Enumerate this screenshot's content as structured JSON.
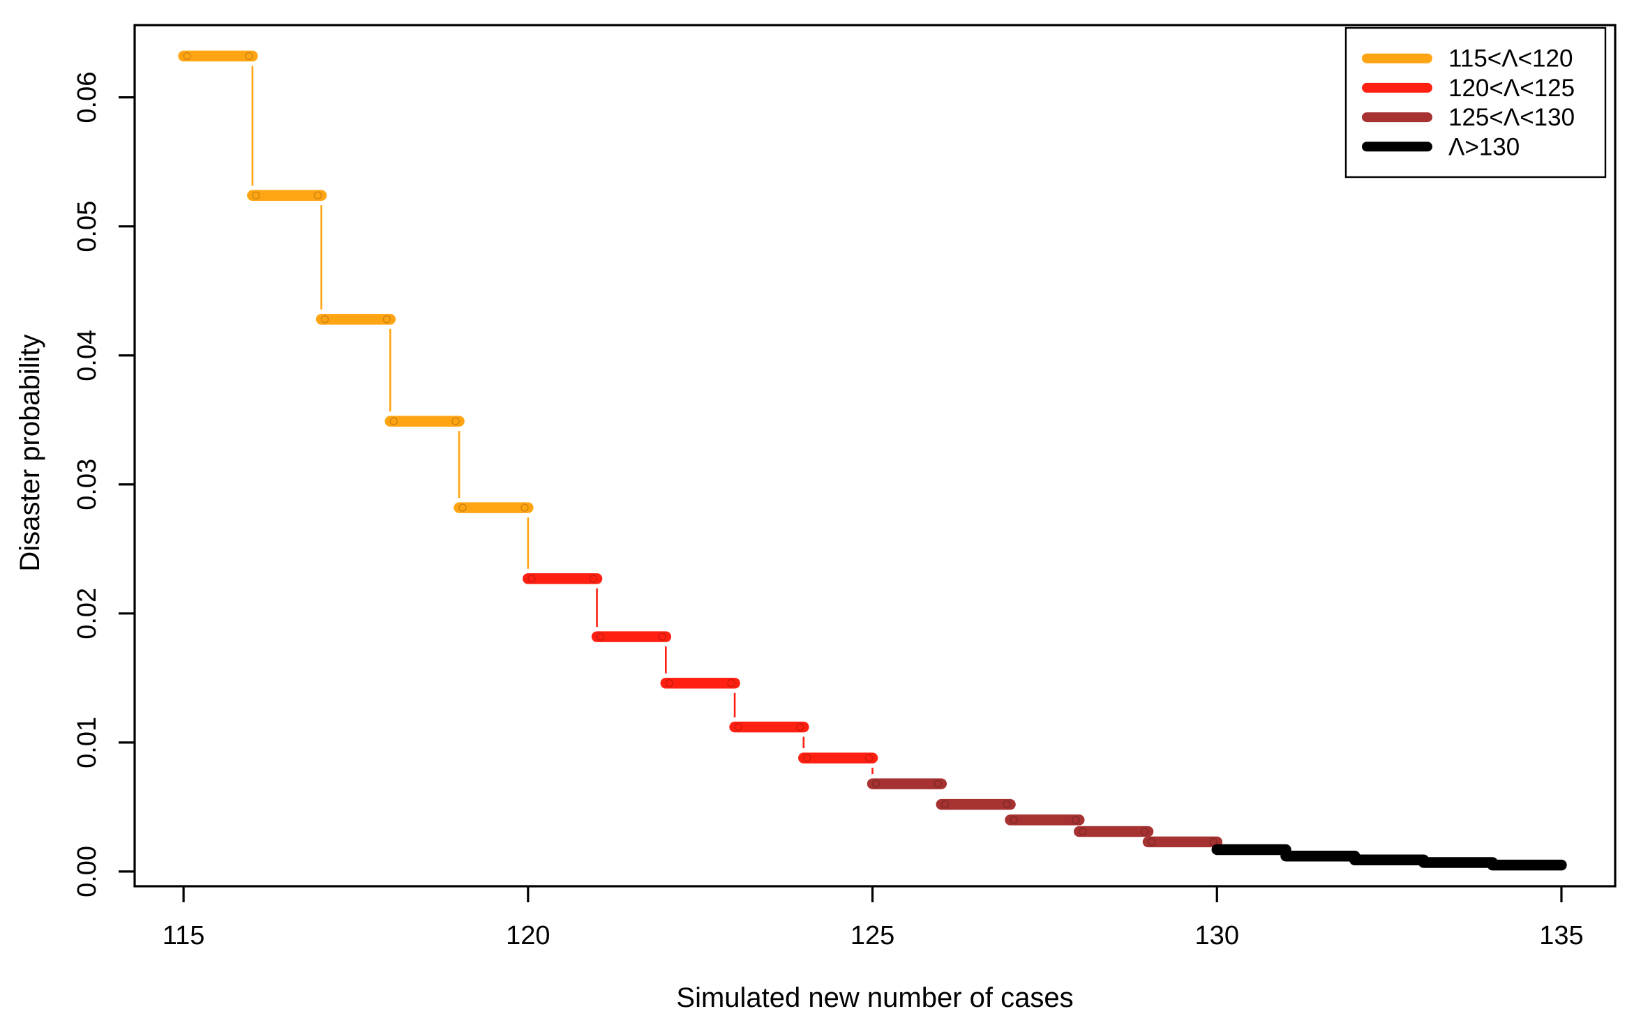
{
  "figure": {
    "background": "#ffffff",
    "foreground": "#000000"
  },
  "chart_data": {
    "type": "step",
    "title": "",
    "xlabel": "Simulated new number of cases",
    "ylabel": "Disaster probability",
    "x_ticks": [
      115,
      120,
      125,
      130,
      135
    ],
    "y_ticks": [
      0,
      0.01,
      0.02,
      0.03,
      0.04,
      0.05,
      0.06
    ],
    "y_tick_labels": [
      "0.00",
      "0.01",
      "0.02",
      "0.03",
      "0.04",
      "0.05",
      "0.06"
    ],
    "xlim": [
      114.29,
      135.78
    ],
    "ylim": [
      -0.00114,
      0.0656
    ],
    "grid": false,
    "step_width": 1,
    "legend_position": "topright",
    "series": [
      {
        "name": "115<Λ<120",
        "color": "#FFA513",
        "x": [
          115,
          116,
          117,
          118,
          119
        ],
        "values": [
          0.0632,
          0.0524,
          0.0428,
          0.0349,
          0.0282
        ]
      },
      {
        "name": "120<Λ<125",
        "color": "#FF2012",
        "x": [
          120,
          121,
          122,
          123,
          124
        ],
        "values": [
          0.0227,
          0.0182,
          0.0146,
          0.0112,
          0.0088
        ]
      },
      {
        "name": "125<Λ<130",
        "color": "#A63232",
        "x": [
          125,
          126,
          127,
          128,
          129
        ],
        "values": [
          0.0068,
          0.0052,
          0.004,
          0.0031,
          0.0023
        ]
      },
      {
        "name": "Λ>130",
        "color": "#000000",
        "x": [
          130,
          131,
          132,
          133,
          134
        ],
        "values": [
          0.0017,
          0.0012,
          0.0009,
          0.0007,
          0.0005
        ]
      }
    ]
  }
}
